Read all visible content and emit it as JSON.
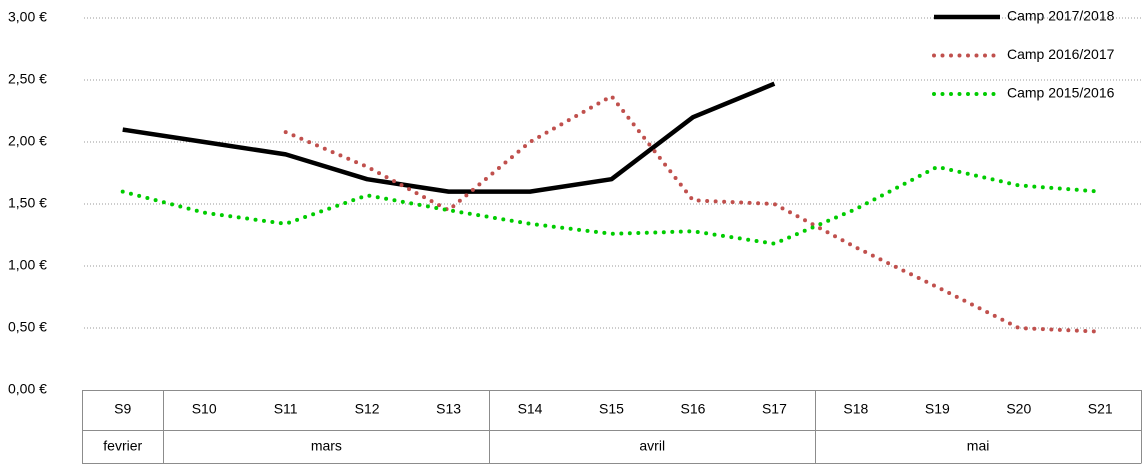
{
  "chart_data": {
    "type": "line",
    "categories": [
      "S9",
      "S10",
      "S11",
      "S12",
      "S13",
      "S14",
      "S15",
      "S16",
      "S17",
      "S18",
      "S19",
      "S20",
      "S21"
    ],
    "groups": [
      {
        "label": "fevrier",
        "from": "S9",
        "to": "S9"
      },
      {
        "label": "mars",
        "from": "S10",
        "to": "S13"
      },
      {
        "label": "avril",
        "from": "S14",
        "to": "S17"
      },
      {
        "label": "mai",
        "from": "S18",
        "to": "S21"
      }
    ],
    "series": [
      {
        "name": "Camp 2017/2018",
        "color": "#000000",
        "style": "solid",
        "values": [
          2.1,
          2.0,
          1.9,
          1.7,
          1.6,
          1.6,
          1.7,
          2.2,
          2.47,
          null,
          null,
          null,
          null
        ]
      },
      {
        "name": "Camp 2016/2017",
        "color": "#c0504d",
        "style": "dotted",
        "values": [
          null,
          null,
          2.08,
          1.8,
          1.45,
          2.0,
          2.37,
          1.53,
          1.5,
          1.15,
          0.83,
          0.5,
          0.47
        ]
      },
      {
        "name": "Camp 2015/2016",
        "color": "#00cc00",
        "style": "dotted",
        "values": [
          1.6,
          1.43,
          1.34,
          1.57,
          1.45,
          1.34,
          1.26,
          1.28,
          1.18,
          1.46,
          1.8,
          1.65,
          1.6
        ]
      }
    ],
    "ylim": [
      0,
      3
    ],
    "yticks": [
      {
        "value": 0,
        "label": "0,00 €"
      },
      {
        "value": 0.5,
        "label": "0,50 €"
      },
      {
        "value": 1,
        "label": "1,00 €"
      },
      {
        "value": 1.5,
        "label": "1,50 €"
      },
      {
        "value": 2,
        "label": "2,00 €"
      },
      {
        "value": 2.5,
        "label": "2,50 €"
      },
      {
        "value": 3,
        "label": "3,00 €"
      }
    ],
    "grid": true,
    "legend": "top-right"
  }
}
